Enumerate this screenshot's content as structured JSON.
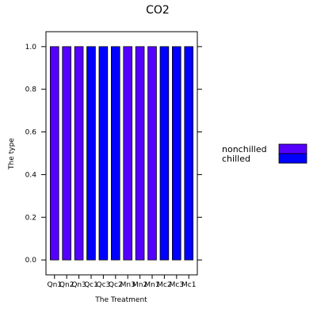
{
  "chart_data": {
    "type": "bar",
    "title": "CO2",
    "xlabel": "The Treatment",
    "ylabel": "The type",
    "categories": [
      "Qn1",
      "Qn2",
      "Qn3",
      "Qc1",
      "Qc3",
      "Qc2",
      "Mn3",
      "Mn2",
      "Mn1",
      "Mc2",
      "Mc3",
      "Mc1"
    ],
    "values": [
      1,
      1,
      1,
      1,
      1,
      1,
      1,
      1,
      1,
      1,
      1,
      1
    ],
    "bar_groups": [
      "nonchilled",
      "nonchilled",
      "nonchilled",
      "chilled",
      "chilled",
      "chilled",
      "nonchilled",
      "nonchilled",
      "nonchilled",
      "chilled",
      "chilled",
      "chilled"
    ],
    "ylim": [
      -0.07,
      1.07
    ],
    "yticks": [
      0.0,
      0.2,
      0.4,
      0.6,
      0.8,
      1.0
    ],
    "ytick_labels": [
      "0.0",
      "0.2",
      "0.4",
      "0.6",
      "0.8",
      "1.0"
    ],
    "legend": {
      "placement": "right",
      "entries": [
        {
          "label": "nonchilled",
          "color": "#5500ff"
        },
        {
          "label": "chilled",
          "color": "#0000ff"
        }
      ]
    },
    "colors": {
      "nonchilled": "#5500ff",
      "chilled": "#0000ff",
      "bar_border": "#000000"
    },
    "grid": false
  }
}
